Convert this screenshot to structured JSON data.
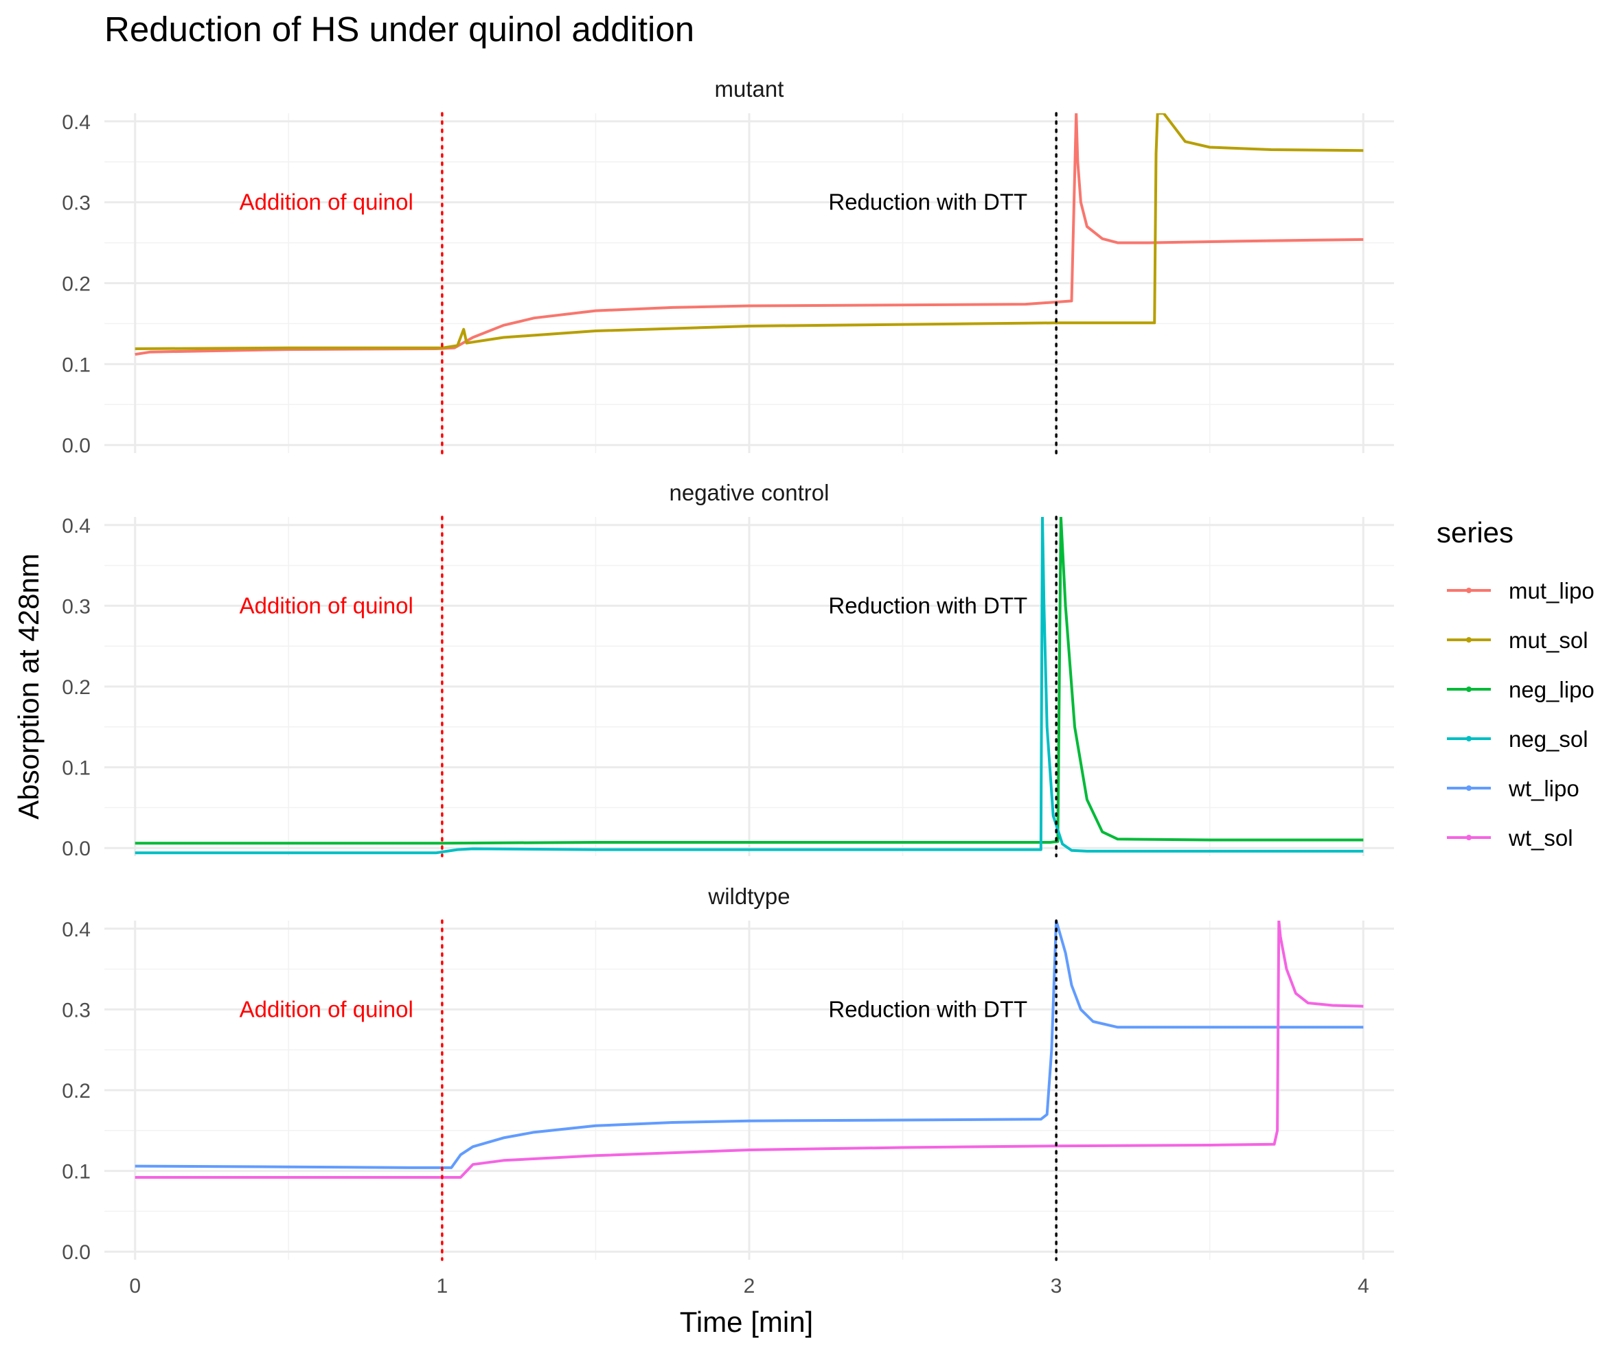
{
  "chart_data": {
    "type": "line",
    "title": "Reduction of HS under quinol addition",
    "xlabel": "Time [min]",
    "ylabel": "Absorption at 428nm",
    "xlim": [
      -0.1,
      4.1
    ],
    "ylim": [
      -0.01,
      0.41
    ],
    "x_ticks": [
      "0",
      "1",
      "2",
      "3",
      "4"
    ],
    "y_ticks": [
      "0.0",
      "0.1",
      "0.2",
      "0.3",
      "0.4"
    ],
    "grid": true,
    "legend": {
      "title": "series",
      "placement": "right",
      "entries": [
        "mut_lipo",
        "mut_sol",
        "neg_lipo",
        "neg_sol",
        "wt_lipo",
        "wt_sol"
      ]
    },
    "colors": {
      "mut_lipo": "#F8766D",
      "mut_sol": "#B79F00",
      "neg_lipo": "#00BA38",
      "neg_sol": "#00BFC4",
      "wt_lipo": "#619CFF",
      "wt_sol": "#F564E3",
      "quinol_line": "#FF0000",
      "dtt_line": "#000000"
    },
    "annotations": {
      "quinol": {
        "label": "Addition of quinol",
        "x": 1.0,
        "color": "#FF0000"
      },
      "dtt": {
        "label": "Reduction with DTT",
        "x": 3.0,
        "color": "#000000"
      }
    },
    "panels": [
      {
        "strip": "mutant",
        "series": [
          {
            "name": "mut_lipo",
            "x": [
              0,
              0.05,
              0.5,
              0.98,
              1.04,
              1.1,
              1.2,
              1.3,
              1.5,
              1.75,
              2.0,
              2.5,
              2.9,
              3.05,
              3.065,
              3.07,
              3.08,
              3.1,
              3.15,
              3.2,
              3.3,
              3.6,
              4.0
            ],
            "y": [
              0.112,
              0.115,
              0.118,
              0.119,
              0.12,
              0.133,
              0.148,
              0.157,
              0.166,
              0.17,
              0.172,
              0.173,
              0.174,
              0.178,
              0.41,
              0.35,
              0.3,
              0.27,
              0.255,
              0.25,
              0.25,
              0.252,
              0.254
            ]
          },
          {
            "name": "mut_sol",
            "x": [
              0,
              0.5,
              1.0,
              1.05,
              1.07,
              1.08,
              1.2,
              1.5,
              2.0,
              2.5,
              3.0,
              3.32,
              3.325,
              3.33,
              3.35,
              3.38,
              3.42,
              3.5,
              3.7,
              4.0
            ],
            "y": [
              0.119,
              0.12,
              0.12,
              0.123,
              0.143,
              0.126,
              0.133,
              0.141,
              0.147,
              0.149,
              0.151,
              0.151,
              0.36,
              0.41,
              0.41,
              0.395,
              0.375,
              0.368,
              0.365,
              0.364
            ]
          }
        ]
      },
      {
        "strip": "negative control",
        "series": [
          {
            "name": "neg_lipo",
            "x": [
              0,
              0.7,
              1.0,
              1.5,
              2.0,
              2.5,
              2.98,
              3.005,
              3.015,
              3.03,
              3.06,
              3.1,
              3.15,
              3.2,
              3.5,
              4.0
            ],
            "y": [
              0.006,
              0.006,
              0.006,
              0.007,
              0.007,
              0.007,
              0.007,
              0.008,
              0.41,
              0.3,
              0.15,
              0.06,
              0.02,
              0.011,
              0.01,
              0.01
            ]
          },
          {
            "name": "neg_sol",
            "x": [
              0,
              0.5,
              0.98,
              1.05,
              1.1,
              1.5,
              2.0,
              2.5,
              2.95,
              2.955,
              2.96,
              2.97,
              2.99,
              3.02,
              3.05,
              3.1,
              3.5,
              4.0
            ],
            "y": [
              -0.006,
              -0.006,
              -0.006,
              -0.002,
              -0.001,
              -0.002,
              -0.002,
              -0.002,
              -0.002,
              0.41,
              0.3,
              0.15,
              0.04,
              0.005,
              -0.003,
              -0.004,
              -0.004,
              -0.004
            ]
          }
        ]
      },
      {
        "strip": "wildtype",
        "series": [
          {
            "name": "wt_lipo",
            "x": [
              0,
              0.5,
              0.9,
              1.03,
              1.06,
              1.1,
              1.2,
              1.3,
              1.5,
              1.75,
              2.0,
              2.5,
              2.95,
              2.97,
              2.985,
              3.0,
              3.03,
              3.05,
              3.08,
              3.12,
              3.2,
              3.5,
              4.0
            ],
            "y": [
              0.106,
              0.105,
              0.104,
              0.104,
              0.12,
              0.13,
              0.141,
              0.148,
              0.156,
              0.16,
              0.162,
              0.163,
              0.164,
              0.17,
              0.25,
              0.41,
              0.37,
              0.33,
              0.3,
              0.285,
              0.278,
              0.278,
              0.278
            ]
          },
          {
            "name": "wt_sol",
            "x": [
              0,
              0.5,
              1.0,
              1.06,
              1.1,
              1.2,
              1.5,
              2.0,
              2.5,
              3.0,
              3.5,
              3.71,
              3.72,
              3.725,
              3.73,
              3.75,
              3.78,
              3.82,
              3.9,
              4.0
            ],
            "y": [
              0.092,
              0.092,
              0.092,
              0.092,
              0.108,
              0.113,
              0.119,
              0.126,
              0.129,
              0.131,
              0.132,
              0.133,
              0.15,
              0.41,
              0.39,
              0.35,
              0.32,
              0.308,
              0.305,
              0.304
            ]
          }
        ]
      }
    ]
  }
}
